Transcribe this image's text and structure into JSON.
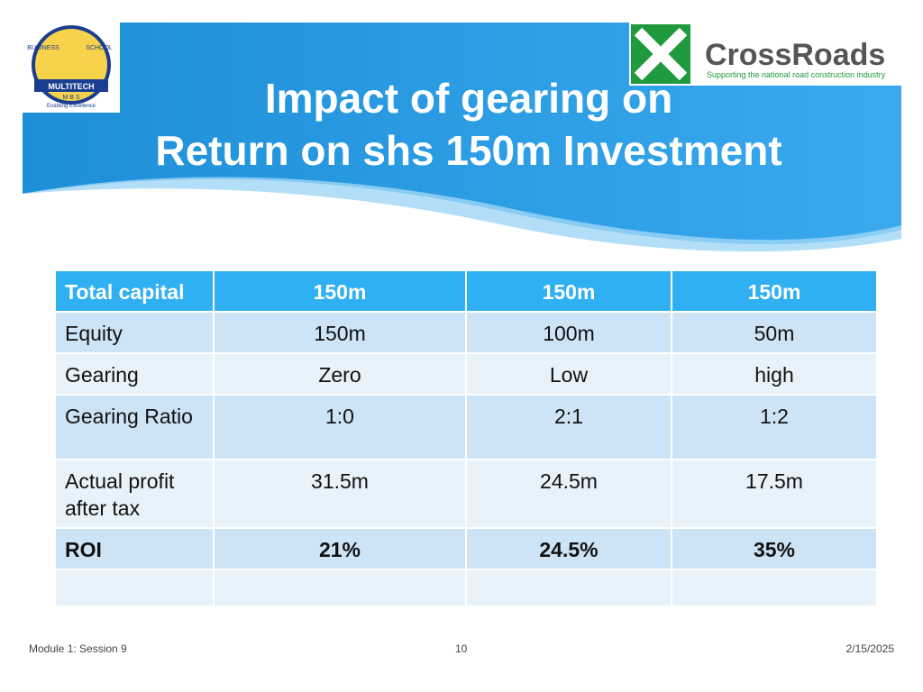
{
  "header": {
    "title_lines": [
      "Impact of gearing on",
      "Return on shs 150m Investment"
    ]
  },
  "logos": {
    "school": [
      "BUSINESS",
      "SCHOOL",
      "MULTITECH",
      "M B S",
      "Enabling Excellence"
    ],
    "crossroads": {
      "name": "CrossRoads",
      "tagline": "Supporting the national road construction industry"
    }
  },
  "table": {
    "header": [
      "Total capital",
      "150m",
      "150m",
      "150m"
    ],
    "rows": [
      [
        "Equity",
        "150m",
        "100m",
        "50m"
      ],
      [
        "Gearing",
        "Zero",
        "Low",
        "high"
      ],
      [
        "Gearing Ratio",
        "1:0",
        "2:1",
        "1:2"
      ],
      [
        "Actual profit after tax",
        "31.5m",
        "24.5m",
        "17.5m"
      ],
      [
        "ROI",
        "21%",
        "24.5%",
        "35%"
      ]
    ]
  },
  "footer": {
    "left": "Module 1: Session 9",
    "center": "10",
    "right": "2/15/2025"
  }
}
